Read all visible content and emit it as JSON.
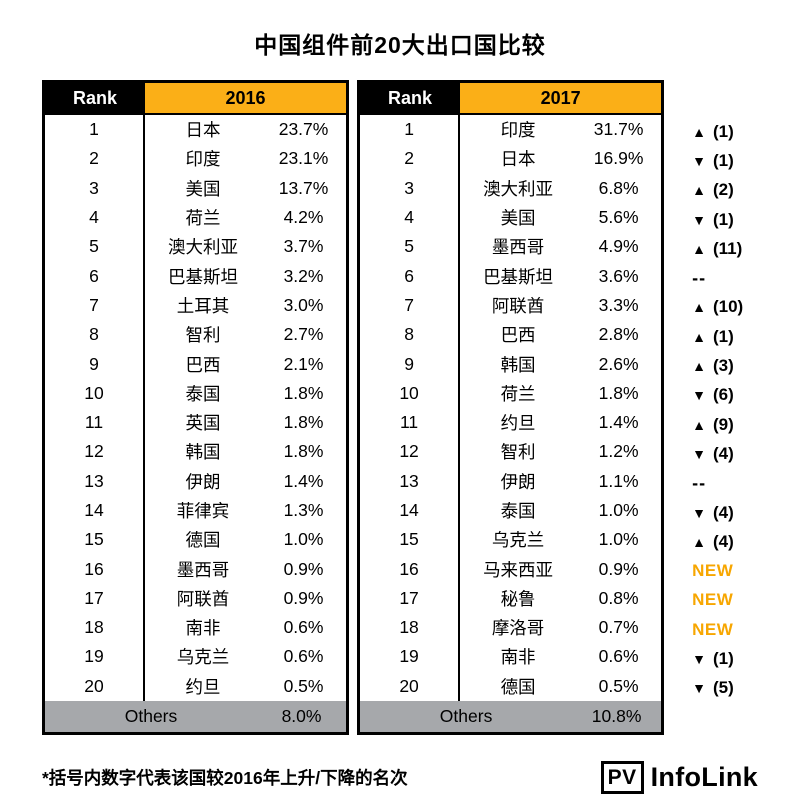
{
  "title": "中国组件前20大出口国比较",
  "chart_data": {
    "type": "table",
    "title": "中国组件前20大出口国比较",
    "tables": [
      {
        "rank_header": "Rank",
        "year": "2016",
        "rows": [
          {
            "rank": "1",
            "country": "日本",
            "share": "23.7%"
          },
          {
            "rank": "2",
            "country": "印度",
            "share": "23.1%"
          },
          {
            "rank": "3",
            "country": "美国",
            "share": "13.7%"
          },
          {
            "rank": "4",
            "country": "荷兰",
            "share": "4.2%"
          },
          {
            "rank": "5",
            "country": "澳大利亚",
            "share": "3.7%"
          },
          {
            "rank": "6",
            "country": "巴基斯坦",
            "share": "3.2%"
          },
          {
            "rank": "7",
            "country": "土耳其",
            "share": "3.0%"
          },
          {
            "rank": "8",
            "country": "智利",
            "share": "2.7%"
          },
          {
            "rank": "9",
            "country": "巴西",
            "share": "2.1%"
          },
          {
            "rank": "10",
            "country": "泰国",
            "share": "1.8%"
          },
          {
            "rank": "11",
            "country": "英国",
            "share": "1.8%"
          },
          {
            "rank": "12",
            "country": "韩国",
            "share": "1.8%"
          },
          {
            "rank": "13",
            "country": "伊朗",
            "share": "1.4%"
          },
          {
            "rank": "14",
            "country": "菲律宾",
            "share": "1.3%"
          },
          {
            "rank": "15",
            "country": "德国",
            "share": "1.0%"
          },
          {
            "rank": "16",
            "country": "墨西哥",
            "share": "0.9%"
          },
          {
            "rank": "17",
            "country": "阿联酋",
            "share": "0.9%"
          },
          {
            "rank": "18",
            "country": "南非",
            "share": "0.6%"
          },
          {
            "rank": "19",
            "country": "乌克兰",
            "share": "0.6%"
          },
          {
            "rank": "20",
            "country": "约旦",
            "share": "0.5%"
          }
        ],
        "others": {
          "label": "Others",
          "share": "8.0%"
        }
      },
      {
        "rank_header": "Rank",
        "year": "2017",
        "rows": [
          {
            "rank": "1",
            "country": "印度",
            "share": "31.7%",
            "change": {
              "dir": "up",
              "label": "(1)"
            }
          },
          {
            "rank": "2",
            "country": "日本",
            "share": "16.9%",
            "change": {
              "dir": "down",
              "label": "(1)"
            }
          },
          {
            "rank": "3",
            "country": "澳大利亚",
            "share": "6.8%",
            "change": {
              "dir": "up",
              "label": "(2)"
            }
          },
          {
            "rank": "4",
            "country": "美国",
            "share": "5.6%",
            "change": {
              "dir": "down",
              "label": "(1)"
            }
          },
          {
            "rank": "5",
            "country": "墨西哥",
            "share": "4.9%",
            "change": {
              "dir": "up",
              "label": "(11)"
            }
          },
          {
            "rank": "6",
            "country": "巴基斯坦",
            "share": "3.6%",
            "change": {
              "dir": "same",
              "label": "--"
            }
          },
          {
            "rank": "7",
            "country": "阿联酋",
            "share": "3.3%",
            "change": {
              "dir": "up",
              "label": "(10)"
            }
          },
          {
            "rank": "8",
            "country": "巴西",
            "share": "2.8%",
            "change": {
              "dir": "up",
              "label": "(1)"
            }
          },
          {
            "rank": "9",
            "country": "韩国",
            "share": "2.6%",
            "change": {
              "dir": "up",
              "label": "(3)"
            }
          },
          {
            "rank": "10",
            "country": "荷兰",
            "share": "1.8%",
            "change": {
              "dir": "down",
              "label": "(6)"
            }
          },
          {
            "rank": "11",
            "country": "约旦",
            "share": "1.4%",
            "change": {
              "dir": "up",
              "label": "(9)"
            }
          },
          {
            "rank": "12",
            "country": "智利",
            "share": "1.2%",
            "change": {
              "dir": "down",
              "label": "(4)"
            }
          },
          {
            "rank": "13",
            "country": "伊朗",
            "share": "1.1%",
            "change": {
              "dir": "same",
              "label": "--"
            }
          },
          {
            "rank": "14",
            "country": "泰国",
            "share": "1.0%",
            "change": {
              "dir": "down",
              "label": "(4)"
            }
          },
          {
            "rank": "15",
            "country": "乌克兰",
            "share": "1.0%",
            "change": {
              "dir": "up",
              "label": "(4)"
            }
          },
          {
            "rank": "16",
            "country": "马来西亚",
            "share": "0.9%",
            "change": {
              "dir": "new",
              "label": "NEW"
            }
          },
          {
            "rank": "17",
            "country": "秘鲁",
            "share": "0.8%",
            "change": {
              "dir": "new",
              "label": "NEW"
            }
          },
          {
            "rank": "18",
            "country": "摩洛哥",
            "share": "0.7%",
            "change": {
              "dir": "new",
              "label": "NEW"
            }
          },
          {
            "rank": "19",
            "country": "南非",
            "share": "0.6%",
            "change": {
              "dir": "down",
              "label": "(1)"
            }
          },
          {
            "rank": "20",
            "country": "德国",
            "share": "0.5%",
            "change": {
              "dir": "down",
              "label": "(5)"
            }
          }
        ],
        "others": {
          "label": "Others",
          "share": "10.8%"
        }
      }
    ]
  },
  "icons": {
    "up": "▲",
    "down": "▼"
  },
  "footnote": "*括号内数字代表该国较2016年上升/下降的名次",
  "logo": {
    "mark": "PV",
    "name": "InfoLink"
  },
  "colors": {
    "header_yellow": "#FBAF17",
    "others_gray": "#A6A8AB",
    "new_orange": "#F7A600",
    "border_black": "#000000"
  }
}
